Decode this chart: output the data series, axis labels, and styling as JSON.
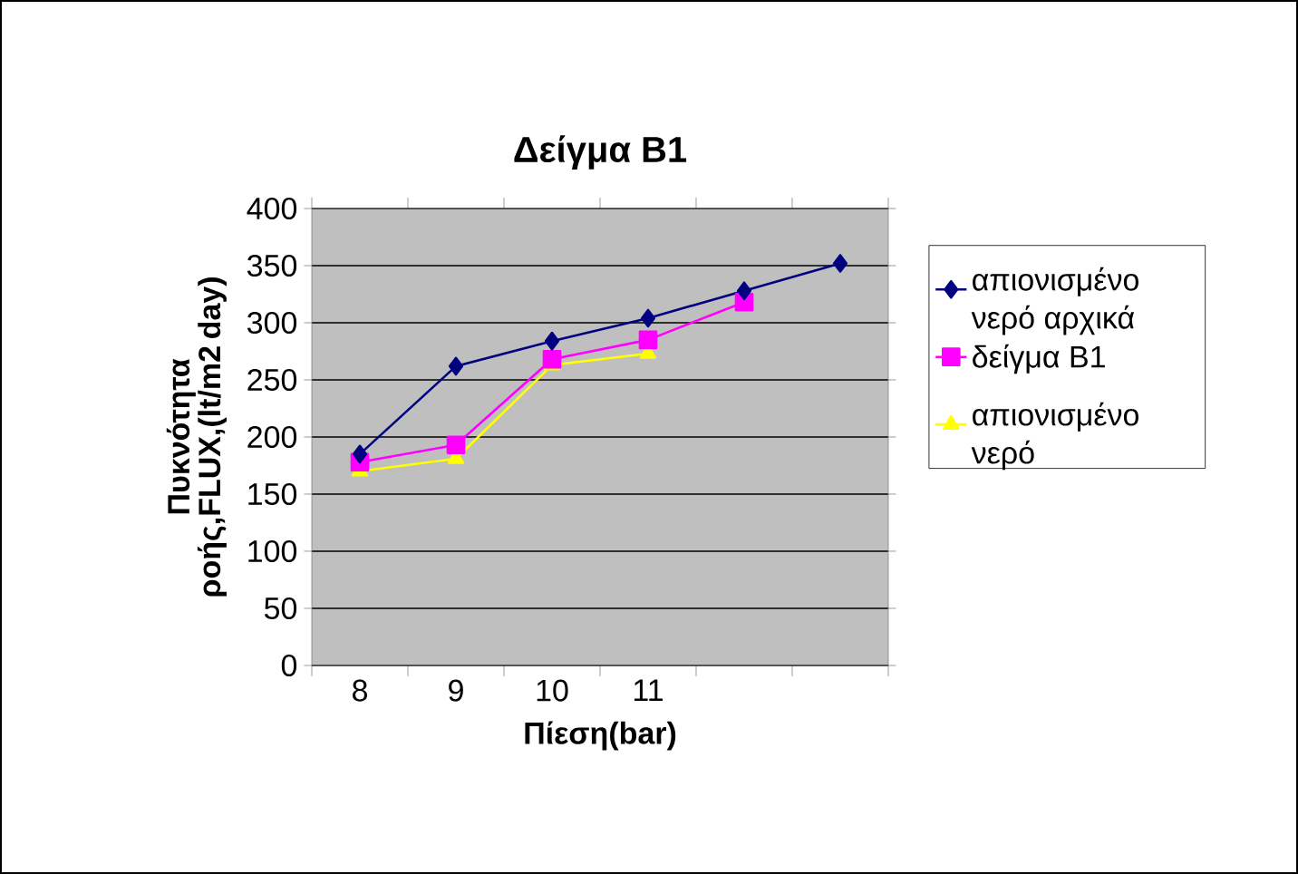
{
  "chart_data": {
    "type": "line",
    "title": "Δείγμα Β1",
    "xlabel": "Πίεση(bar)",
    "ylabel": "Πυκνότητα ροής,FLUX,(lt/m2 day)",
    "categories": [
      "8",
      "9",
      "10",
      "11",
      null,
      null
    ],
    "series": [
      {
        "name": "απιονισμένο νερό αρχικά",
        "color": "#000080",
        "marker": "diamond",
        "values": [
          185,
          262,
          284,
          304,
          328,
          352
        ]
      },
      {
        "name": "δείγμα Β1",
        "color": "#ff00ff",
        "marker": "square",
        "values": [
          178,
          193,
          268,
          285,
          318,
          null
        ]
      },
      {
        "name": "απιονισμένο νερό",
        "color": "#ffff00",
        "marker": "triangle",
        "values": [
          170,
          181,
          263,
          273,
          null,
          null
        ]
      }
    ],
    "ylim": [
      0,
      400
    ],
    "yticks": [
      0,
      50,
      100,
      150,
      200,
      250,
      300,
      350,
      400
    ],
    "grid": "y",
    "legend": "right"
  }
}
